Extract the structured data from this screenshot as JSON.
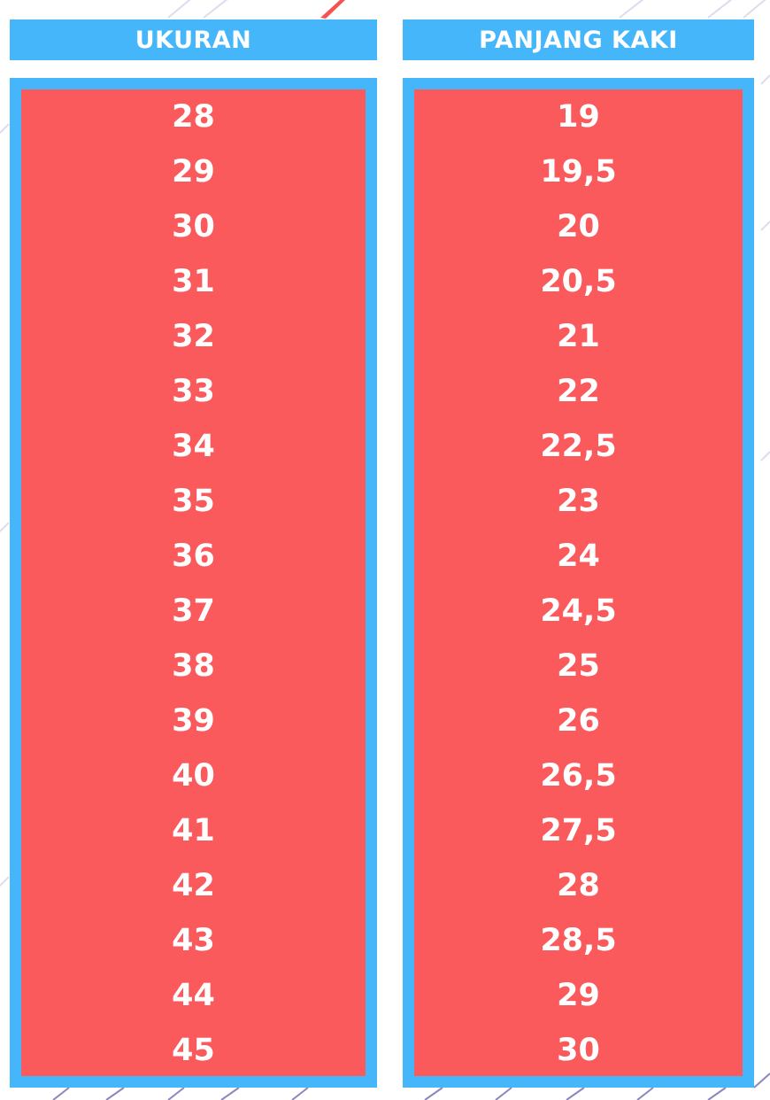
{
  "colors": {
    "header_bg": "#45b6fa",
    "frame_bg": "#45b6fa",
    "body_bg": "#fa5a5c",
    "text": "#ffffff",
    "stripe": "#d9d9ee",
    "accent": "#f4534f"
  },
  "columns": [
    {
      "header": "UKURAN",
      "values": [
        "28",
        "29",
        "30",
        "31",
        "32",
        "33",
        "34",
        "35",
        "36",
        "37",
        "38",
        "39",
        "40",
        "41",
        "42",
        "43",
        "44",
        "45"
      ]
    },
    {
      "header": "PANJANG KAKI",
      "values": [
        "19",
        "19,5",
        "20",
        "20,5",
        "21",
        "22",
        "22,5",
        "23",
        "24",
        "24,5",
        "25",
        "26",
        "26,5",
        "27,5",
        "28",
        "28,5",
        "29",
        "30"
      ]
    }
  ]
}
